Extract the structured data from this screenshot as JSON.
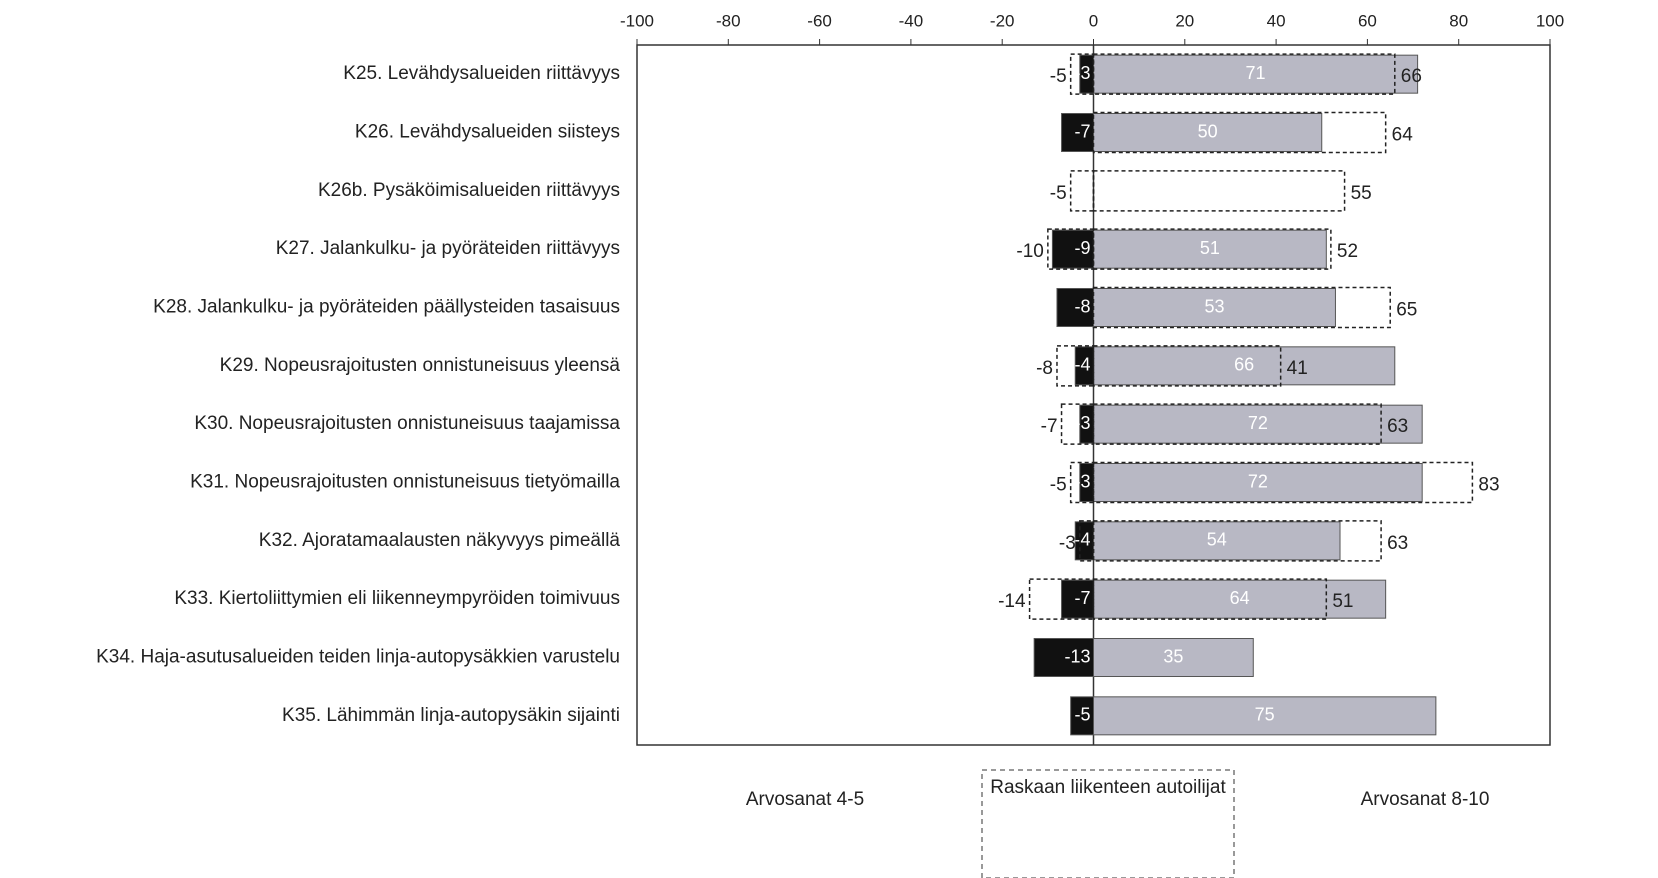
{
  "chart_data": {
    "type": "diverging-bar",
    "categories": [
      "K25. Levähdysalueiden riittävyys",
      "K26. Levähdysalueiden siisteys",
      "K26b. Pysäköimisalueiden riittävyys",
      "K27. Jalankulku- ja pyöräteiden riittävyys",
      "K28. Jalankulku- ja pyöräteiden päällysteiden tasaisuus",
      "K29. Nopeusrajoitusten onnistuneisuus yleensä",
      "K30. Nopeusrajoitusten onnistuneisuus taajamissa",
      "K31. Nopeusrajoitusten onnistuneisuus tietyömailla",
      "K32. Ajoratamaalausten näkyvyys pimeällä",
      "K33. Kiertoliittymien eli liikenneympyröiden toimivuus",
      "K34. Haja-asutusalueiden teiden linja-autopysäkkien varustelu",
      "K35. Lähimmän linja-autopysäkin sijainti"
    ],
    "series": [
      {
        "name": "Arvosanat 4-5",
        "color": "#111111",
        "values": [
          -3,
          -7,
          null,
          -9,
          -8,
          -4,
          -3,
          -3,
          -4,
          -7,
          -13,
          -5
        ],
        "heavy_values": [
          -5,
          null,
          -5,
          -10,
          null,
          -8,
          -7,
          -5,
          -3,
          -14,
          null,
          null
        ]
      },
      {
        "name": "Arvosanat 8-10",
        "color": "#b8b8c4",
        "values": [
          71,
          50,
          null,
          51,
          53,
          66,
          72,
          72,
          54,
          64,
          35,
          75
        ],
        "heavy_values": [
          66,
          64,
          55,
          52,
          65,
          41,
          63,
          83,
          63,
          51,
          null,
          null
        ]
      }
    ],
    "heavy_name": "Raskaan liikenteen autoilijat",
    "xlim": [
      -100,
      100
    ],
    "xticks": [
      -100,
      -80,
      -60,
      -40,
      -20,
      0,
      20,
      40,
      60,
      80,
      100
    ]
  }
}
